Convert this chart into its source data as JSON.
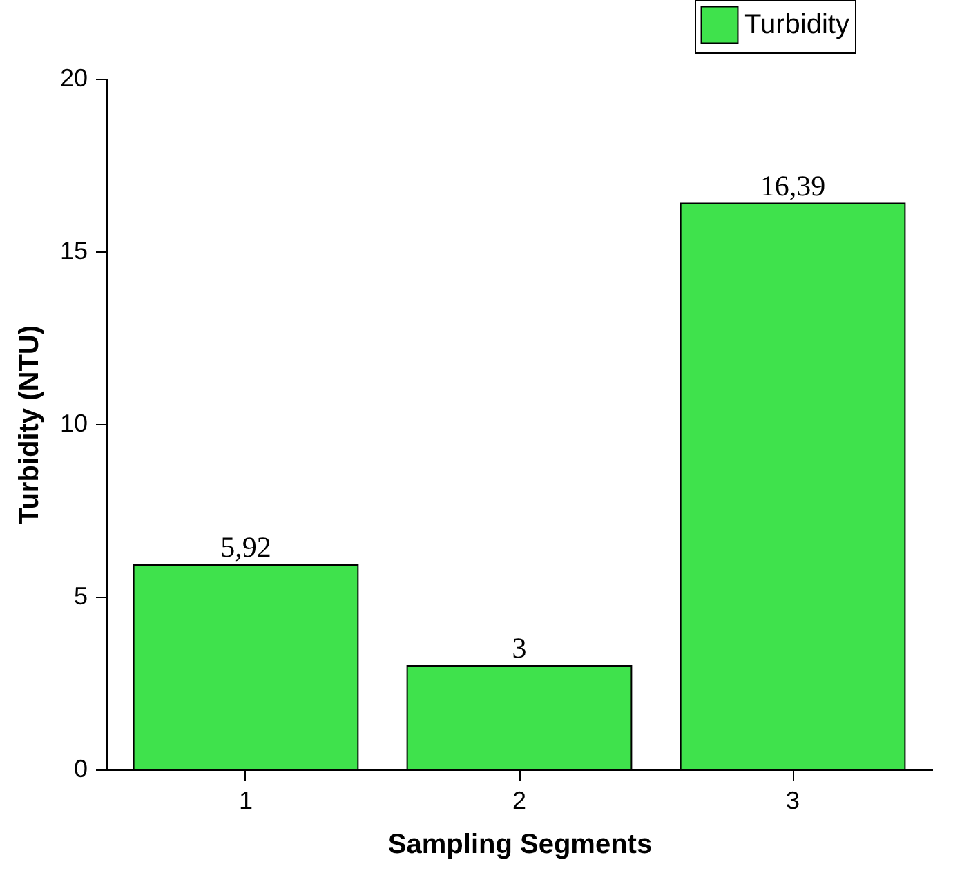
{
  "chart_data": {
    "type": "bar",
    "xlabel": "Sampling Segments",
    "ylabel": "Turbidity (NTU)",
    "categories": [
      "1",
      "2",
      "3"
    ],
    "series": [
      {
        "name": "Turbidity",
        "color": "#3fe24c",
        "values": [
          5.92,
          3,
          16.39
        ]
      }
    ],
    "value_labels": [
      "5,92",
      "3",
      "16,39"
    ],
    "ylim": [
      0,
      20
    ],
    "yticks": [
      0,
      5,
      10,
      15,
      20
    ],
    "grid": false,
    "legend": "top right"
  }
}
